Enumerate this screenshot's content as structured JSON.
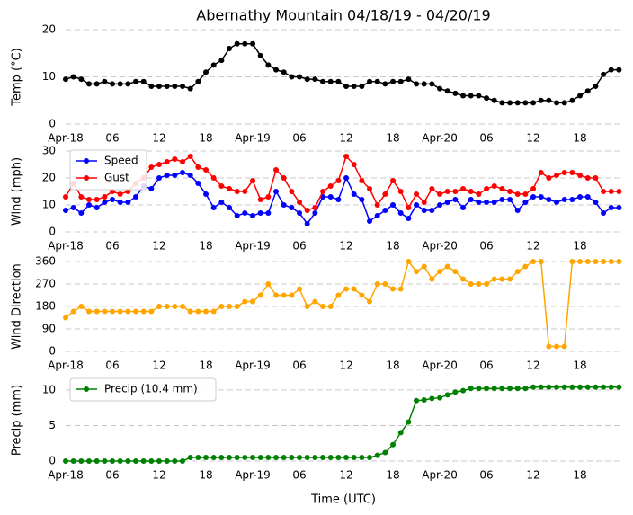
{
  "chart_data": [
    {
      "type": "line",
      "title": "Abernathy Mountain 04/18/19 - 04/20/19",
      "ylabel": "Temp (°C)",
      "x": [
        0,
        1,
        2,
        3,
        4,
        5,
        6,
        7,
        8,
        9,
        10,
        11,
        12,
        13,
        14,
        15,
        16,
        17,
        18,
        19,
        20,
        21,
        22,
        23,
        24,
        25,
        26,
        27,
        28,
        29,
        30,
        31,
        32,
        33,
        34,
        35,
        36,
        37,
        38,
        39,
        40,
        41,
        42,
        43,
        44,
        45,
        46,
        47,
        48,
        49,
        50,
        51,
        52,
        53,
        54,
        55,
        56,
        57,
        58,
        59,
        60,
        61,
        62,
        63,
        64,
        65,
        66,
        67,
        68,
        69,
        70,
        71
      ],
      "xlim": [
        0,
        71.3
      ],
      "xticks": [
        {
          "value": 0,
          "label": "Apr-18"
        },
        {
          "value": 6,
          "label": "06"
        },
        12,
        18,
        {
          "value": 24,
          "label": "Apr-19"
        },
        {
          "value": 30,
          "label": "06"
        },
        {
          "value": 36,
          "label": "12"
        },
        {
          "value": 42,
          "label": "18"
        },
        {
          "value": 48,
          "label": "Apr-20"
        },
        {
          "value": 54,
          "label": "06"
        },
        {
          "value": 60,
          "label": "12"
        },
        {
          "value": 66,
          "label": "18"
        }
      ],
      "ylim": [
        0,
        20
      ],
      "yticks": [
        0,
        10,
        20
      ],
      "grid": true,
      "series": [
        {
          "color": "#000000",
          "values": [
            9.5,
            10,
            9.5,
            8.5,
            8.5,
            9,
            8.5,
            8.5,
            8.5,
            9,
            9,
            8,
            8,
            8,
            8,
            8,
            7.5,
            9,
            11,
            12.5,
            13.5,
            16,
            17,
            17,
            17,
            14.5,
            12.5,
            11.5,
            11,
            10,
            10,
            9.5,
            9.5,
            9,
            9,
            9,
            8,
            8,
            8,
            9,
            9,
            8.5,
            9,
            9,
            9.5,
            8.5,
            8.5,
            8.5,
            7.5,
            7,
            6.5,
            6,
            6,
            6,
            5.5,
            5,
            4.5,
            4.5,
            4.5,
            4.5,
            4.5,
            5,
            5,
            4.5,
            4.5,
            5,
            6,
            7,
            8,
            10.5,
            11.5,
            11.5
          ]
        }
      ]
    },
    {
      "type": "line",
      "ylabel": "Wind (mph)",
      "x": [
        0,
        1,
        2,
        3,
        4,
        5,
        6,
        7,
        8,
        9,
        10,
        11,
        12,
        13,
        14,
        15,
        16,
        17,
        18,
        19,
        20,
        21,
        22,
        23,
        24,
        25,
        26,
        27,
        28,
        29,
        30,
        31,
        32,
        33,
        34,
        35,
        36,
        37,
        38,
        39,
        40,
        41,
        42,
        43,
        44,
        45,
        46,
        47,
        48,
        49,
        50,
        51,
        52,
        53,
        54,
        55,
        56,
        57,
        58,
        59,
        60,
        61,
        62,
        63,
        64,
        65,
        66,
        67,
        68,
        69,
        70,
        71
      ],
      "xlim": [
        0,
        71.3
      ],
      "xticks": [
        {
          "value": 0,
          "label": "Apr-18"
        },
        {
          "value": 6,
          "label": "06"
        },
        12,
        18,
        {
          "value": 24,
          "label": "Apr-19"
        },
        {
          "value": 30,
          "label": "06"
        },
        {
          "value": 36,
          "label": "12"
        },
        {
          "value": 42,
          "label": "18"
        },
        {
          "value": 48,
          "label": "Apr-20"
        },
        {
          "value": 54,
          "label": "06"
        },
        {
          "value": 60,
          "label": "12"
        },
        {
          "value": 66,
          "label": "18"
        }
      ],
      "ylim": [
        0,
        30
      ],
      "yticks": [
        0,
        10,
        20,
        30
      ],
      "grid": true,
      "legend": "upper left",
      "series": [
        {
          "name": "Speed",
          "color": "#0000ff",
          "values": [
            8,
            9,
            7,
            10,
            9,
            11,
            12,
            11,
            11,
            13,
            17,
            16,
            20,
            21,
            21,
            22,
            21,
            18,
            14,
            9,
            11,
            9,
            6,
            7,
            6,
            7,
            7,
            15,
            10,
            9,
            7,
            3,
            7,
            13,
            13,
            12,
            20,
            14,
            12,
            4,
            6,
            8,
            10,
            7,
            5,
            10,
            8,
            8,
            10,
            11,
            12,
            9,
            12,
            11,
            11,
            11,
            12,
            12,
            8,
            11,
            13,
            13,
            12,
            11,
            12,
            12,
            13,
            13,
            11,
            7,
            9,
            9
          ]
        },
        {
          "name": "Gust",
          "color": "#ff0000",
          "values": [
            13,
            18,
            13,
            12,
            12,
            13,
            15,
            14,
            15,
            18,
            20,
            24,
            25,
            26,
            27,
            26,
            28,
            24,
            23,
            20,
            17,
            16,
            15,
            15,
            19,
            12,
            13,
            23,
            20,
            15,
            11,
            8,
            9,
            15,
            17,
            19,
            28,
            25,
            19,
            16,
            10,
            14,
            19,
            15,
            9,
            14,
            11,
            16,
            14,
            15,
            15,
            16,
            15,
            14,
            16,
            17,
            16,
            15,
            14,
            14,
            16,
            22,
            20,
            21,
            22,
            22,
            21,
            20,
            20,
            15,
            15,
            15
          ]
        }
      ]
    },
    {
      "type": "line",
      "ylabel": "Wind Direction",
      "x": [
        0,
        1,
        2,
        3,
        4,
        5,
        6,
        7,
        8,
        9,
        10,
        11,
        12,
        13,
        14,
        15,
        16,
        17,
        18,
        19,
        20,
        21,
        22,
        23,
        24,
        25,
        26,
        27,
        28,
        29,
        30,
        31,
        32,
        33,
        34,
        35,
        36,
        37,
        38,
        39,
        40,
        41,
        42,
        43,
        44,
        45,
        46,
        47,
        48,
        49,
        50,
        51,
        52,
        53,
        54,
        55,
        56,
        57,
        58,
        59,
        60,
        61,
        62,
        63,
        64,
        65,
        66,
        67,
        68,
        69,
        70,
        71
      ],
      "xlim": [
        0,
        71.3
      ],
      "xticks": [
        {
          "value": 0,
          "label": "Apr-18"
        },
        {
          "value": 6,
          "label": "06"
        },
        12,
        18,
        {
          "value": 24,
          "label": "Apr-19"
        },
        {
          "value": 30,
          "label": "06"
        },
        {
          "value": 36,
          "label": "12"
        },
        {
          "value": 42,
          "label": "18"
        },
        {
          "value": 48,
          "label": "Apr-20"
        },
        {
          "value": 54,
          "label": "06"
        },
        {
          "value": 60,
          "label": "12"
        },
        {
          "value": 66,
          "label": "18"
        }
      ],
      "ylim": [
        0,
        360
      ],
      "yticks": [
        0,
        90,
        180,
        270,
        360
      ],
      "grid": true,
      "series": [
        {
          "color": "#ffa500",
          "values": [
            135,
            160,
            180,
            160,
            160,
            160,
            160,
            160,
            160,
            160,
            160,
            160,
            180,
            180,
            180,
            180,
            160,
            160,
            160,
            160,
            180,
            180,
            180,
            200,
            200,
            225,
            270,
            225,
            225,
            225,
            250,
            180,
            200,
            180,
            180,
            225,
            250,
            250,
            225,
            200,
            270,
            270,
            250,
            250,
            360,
            320,
            340,
            290,
            320,
            340,
            320,
            290,
            270,
            270,
            270,
            290,
            290,
            290,
            320,
            340,
            360,
            360,
            20,
            20,
            20,
            360,
            360,
            360,
            360,
            360,
            360,
            360
          ]
        }
      ]
    },
    {
      "type": "line",
      "ylabel": "Precip (mm)",
      "xlabel": "Time (UTC)",
      "x": [
        0,
        1,
        2,
        3,
        4,
        5,
        6,
        7,
        8,
        9,
        10,
        11,
        12,
        13,
        14,
        15,
        16,
        17,
        18,
        19,
        20,
        21,
        22,
        23,
        24,
        25,
        26,
        27,
        28,
        29,
        30,
        31,
        32,
        33,
        34,
        35,
        36,
        37,
        38,
        39,
        40,
        41,
        42,
        43,
        44,
        45,
        46,
        47,
        48,
        49,
        50,
        51,
        52,
        53,
        54,
        55,
        56,
        57,
        58,
        59,
        60,
        61,
        62,
        63,
        64,
        65,
        66,
        67,
        68,
        69,
        70,
        71
      ],
      "xlim": [
        0,
        71.3
      ],
      "xticks": [
        {
          "value": 0,
          "label": "Apr-18"
        },
        {
          "value": 6,
          "label": "06"
        },
        12,
        18,
        {
          "value": 24,
          "label": "Apr-19"
        },
        {
          "value": 30,
          "label": "06"
        },
        {
          "value": 36,
          "label": "12"
        },
        {
          "value": 42,
          "label": "18"
        },
        {
          "value": 48,
          "label": "Apr-20"
        },
        {
          "value": 54,
          "label": "06"
        },
        {
          "value": 60,
          "label": "12"
        },
        {
          "value": 66,
          "label": "18"
        }
      ],
      "ylim": [
        0,
        11.5
      ],
      "yticks": [
        0,
        5,
        10
      ],
      "grid": true,
      "legend": "upper left",
      "series": [
        {
          "name": "Precip (10.4 mm)",
          "color": "#008000",
          "values": [
            0,
            0,
            0,
            0,
            0,
            0,
            0,
            0,
            0,
            0,
            0,
            0,
            0,
            0,
            0,
            0,
            0.5,
            0.5,
            0.5,
            0.5,
            0.5,
            0.5,
            0.5,
            0.5,
            0.5,
            0.5,
            0.5,
            0.5,
            0.5,
            0.5,
            0.5,
            0.5,
            0.5,
            0.5,
            0.5,
            0.5,
            0.5,
            0.5,
            0.5,
            0.5,
            0.8,
            1.2,
            2.3,
            4,
            5.5,
            8.5,
            8.6,
            8.8,
            8.9,
            9.3,
            9.7,
            9.9,
            10.2,
            10.2,
            10.2,
            10.2,
            10.2,
            10.2,
            10.2,
            10.2,
            10.4,
            10.4,
            10.4,
            10.4,
            10.4,
            10.4,
            10.4,
            10.4,
            10.4,
            10.4,
            10.4,
            10.4
          ]
        }
      ]
    }
  ]
}
